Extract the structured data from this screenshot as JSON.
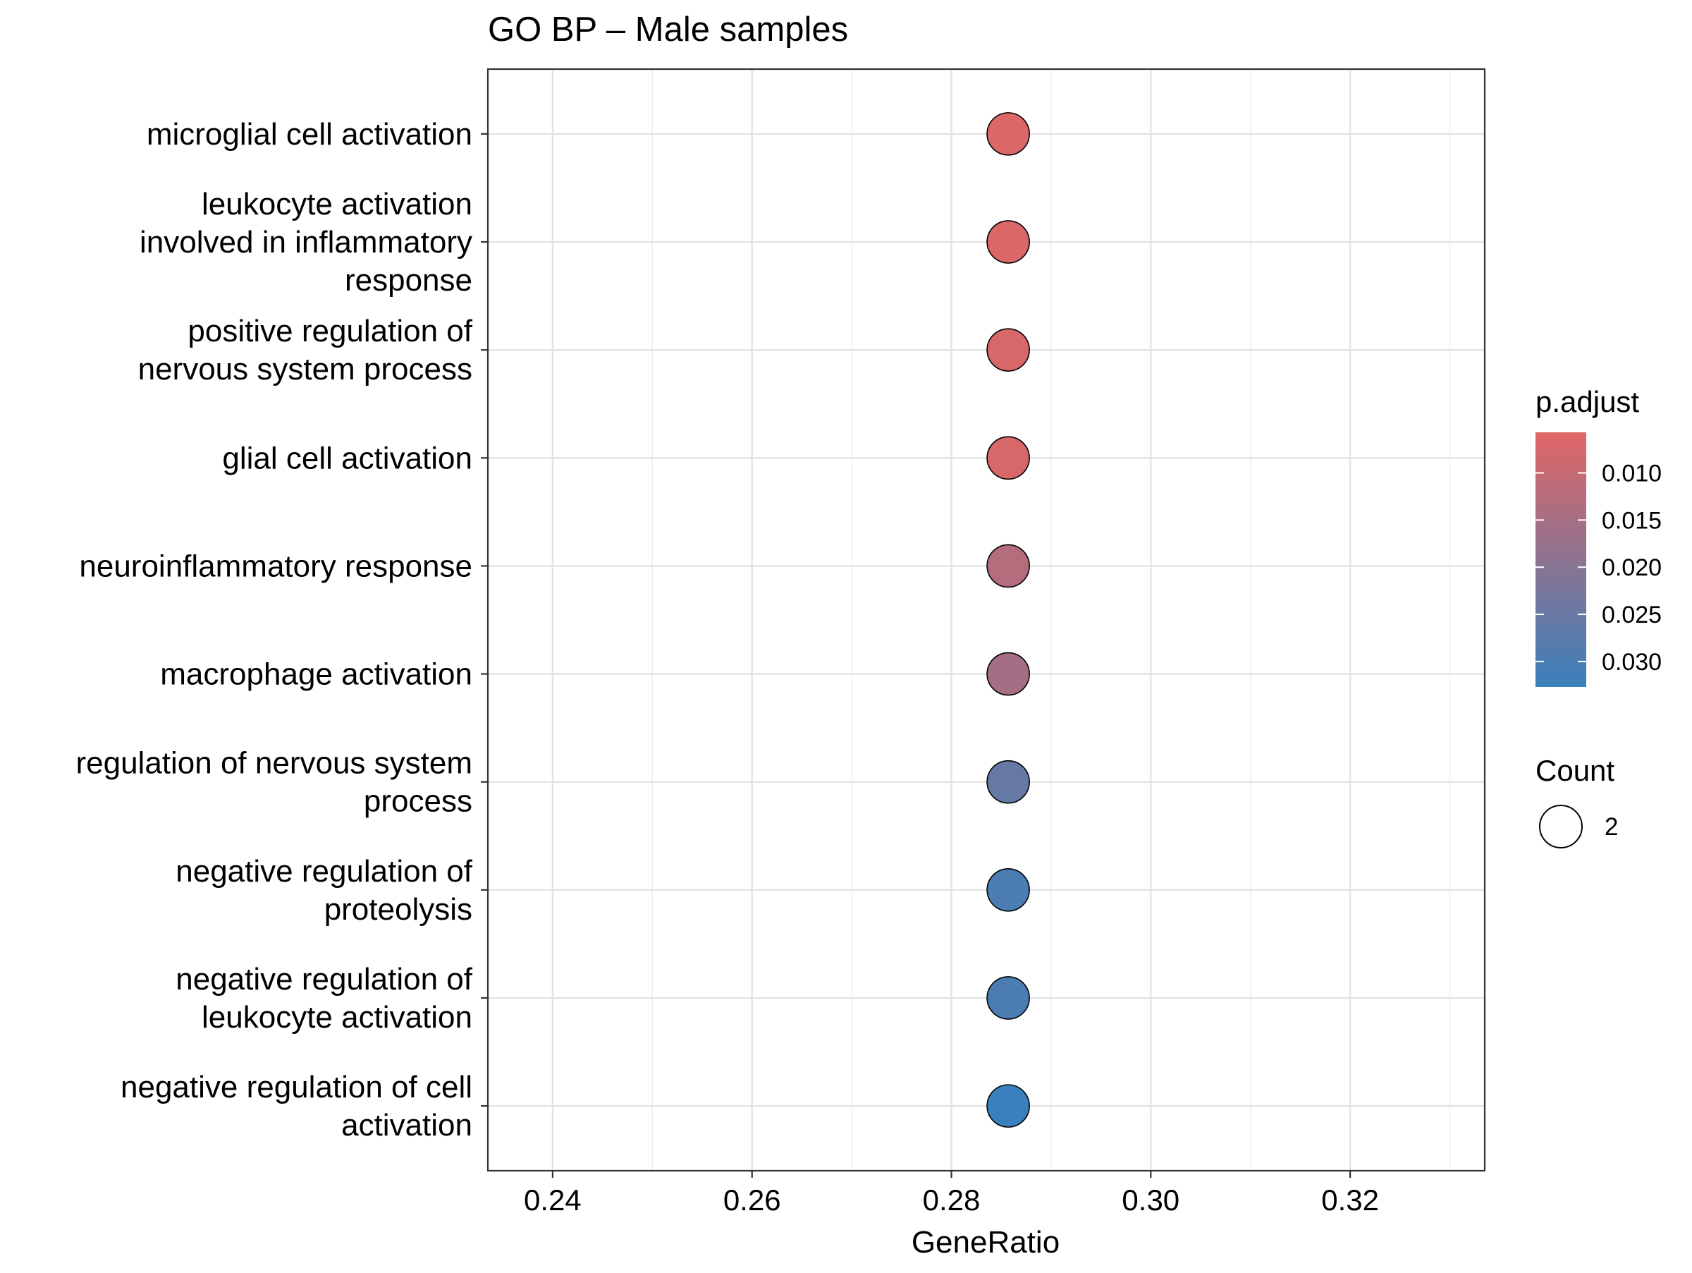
{
  "chart_data": {
    "type": "scatter",
    "title": "GO BP – Male samples",
    "xlabel": "GeneRatio",
    "ylabel": "",
    "xlim": [
      0.2335,
      0.3335
    ],
    "xticks": [
      "0.24",
      "0.26",
      "0.28",
      "0.30",
      "0.32"
    ],
    "grid": true,
    "categories": [
      [
        "microglial cell activation"
      ],
      [
        "leukocyte activation",
        "involved in inflammatory",
        "response"
      ],
      [
        "positive regulation of",
        "nervous system process"
      ],
      [
        "glial cell activation"
      ],
      [
        "neuroinflammatory response"
      ],
      [
        "macrophage activation"
      ],
      [
        "regulation of nervous system",
        "process"
      ],
      [
        "negative regulation of",
        "proteolysis"
      ],
      [
        "negative regulation of",
        "leukocyte activation"
      ],
      [
        "negative regulation of cell",
        "activation"
      ]
    ],
    "points": [
      {
        "x": 0.2857,
        "p_adjust": 0.0063,
        "count": 2
      },
      {
        "x": 0.2857,
        "p_adjust": 0.0065,
        "count": 2
      },
      {
        "x": 0.2857,
        "p_adjust": 0.007,
        "count": 2
      },
      {
        "x": 0.2857,
        "p_adjust": 0.007,
        "count": 2
      },
      {
        "x": 0.2857,
        "p_adjust": 0.013,
        "count": 2
      },
      {
        "x": 0.2857,
        "p_adjust": 0.0155,
        "count": 2
      },
      {
        "x": 0.2857,
        "p_adjust": 0.0255,
        "count": 2
      },
      {
        "x": 0.2857,
        "p_adjust": 0.03,
        "count": 2
      },
      {
        "x": 0.2857,
        "p_adjust": 0.03,
        "count": 2
      },
      {
        "x": 0.2857,
        "p_adjust": 0.0347,
        "count": 2
      }
    ],
    "color_legend": {
      "title": "p.adjust",
      "range": [
        0.0057,
        0.0327
      ],
      "low_color": "#E06666",
      "high_color": "#3A80BC",
      "ticks": [
        0.01,
        0.015,
        0.02,
        0.025,
        0.03
      ],
      "tick_labels": [
        "0.010",
        "0.015",
        "0.020",
        "0.025",
        "0.030"
      ]
    },
    "size_legend": {
      "title": "Count",
      "items": [
        "2"
      ]
    },
    "legend_position": "right"
  }
}
